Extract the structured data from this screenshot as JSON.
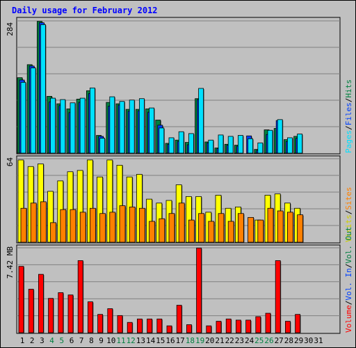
{
  "title": "Daily usage for February 2012",
  "colors": {
    "background": "#c0c0c0",
    "grid": "#808080",
    "hits": "#008040",
    "files": "#0040ff",
    "pages": "#00e0ff",
    "visits": "#ffff00",
    "sites": "#ff8000",
    "volume": "#ff0000",
    "kb_in": "#00c000",
    "kb_out": "#00a0a0",
    "weekend_label": "#008040"
  },
  "chart_data": [
    {
      "type": "bar",
      "name": "hits-files-pages",
      "max_label": "284",
      "ylim": [
        0,
        284
      ],
      "grid": true,
      "legend_labels": [
        "Pages",
        "Files",
        "Hits"
      ],
      "legend_separator": "/",
      "series": [
        {
          "name": "Hits",
          "values": [
            162,
            190,
            283,
            122,
            106,
            95,
            116,
            134,
            38,
            109,
            106,
            94,
            94,
            95,
            71,
            21,
            28,
            23,
            117,
            24,
            11,
            19,
            17,
            0,
            8,
            50,
            53,
            29,
            36
          ]
        },
        {
          "name": "Files",
          "values": [
            157,
            187,
            280,
            110,
            102,
            87,
            109,
            128,
            36,
            101,
            103,
            90,
            91,
            88,
            60,
            19,
            25,
            18,
            115,
            22,
            10,
            17,
            15,
            37,
            6,
            40,
            70,
            25,
            32
          ]
        },
        {
          "name": "Pages",
          "values": [
            152,
            183,
            276,
            118,
            115,
            108,
            118,
            140,
            32,
            121,
            111,
            114,
            117,
            97,
            54,
            33,
            46,
            42,
            139,
            28,
            39,
            36,
            38,
            31,
            22,
            49,
            72,
            33,
            41
          ]
        }
      ]
    },
    {
      "type": "bar",
      "name": "visits-sites",
      "max_label": "64",
      "ylim": [
        0,
        64
      ],
      "grid": true,
      "legend_labels": [
        "Visits",
        "Sites"
      ],
      "legend_separator": "/",
      "series": [
        {
          "name": "Visits",
          "values": [
            63,
            58,
            60,
            39,
            47,
            54,
            55,
            63,
            50,
            63,
            59,
            50,
            52,
            33,
            30,
            32,
            44,
            35,
            35,
            23,
            36,
            26,
            27,
            0,
            17,
            36,
            37,
            30,
            26
          ]
        },
        {
          "name": "Sites",
          "values": [
            26,
            30,
            31,
            15,
            25,
            25,
            23,
            26,
            22,
            23,
            28,
            27,
            26,
            16,
            18,
            22,
            30,
            17,
            22,
            16,
            22,
            16,
            22,
            19,
            17,
            26,
            24,
            23,
            21
          ]
        }
      ]
    },
    {
      "type": "bar",
      "name": "volume",
      "max_label": "7.42 MB",
      "ylim": [
        0,
        7.42
      ],
      "grid": true,
      "legend_labels": [
        "Volume",
        "Vol. In",
        "Vol. Out"
      ],
      "legend_separator": "/",
      "series": [
        {
          "name": "Volume",
          "values": [
            5.8,
            3.8,
            5.1,
            3.0,
            3.5,
            3.3,
            6.3,
            2.7,
            1.6,
            2.1,
            1.5,
            0.9,
            1.2,
            1.2,
            1.2,
            0.6,
            2.4,
            0.7,
            7.4,
            0.6,
            1.0,
            1.2,
            1.1,
            1.1,
            1.4,
            1.7,
            6.3,
            1.0,
            1.6
          ]
        }
      ]
    }
  ],
  "x_labels": [
    "1",
    "2",
    "3",
    "4",
    "5",
    "6",
    "7",
    "8",
    "9",
    "10",
    "11",
    "12",
    "13",
    "14",
    "15",
    "16",
    "17",
    "18",
    "19",
    "20",
    "21",
    "22",
    "23",
    "24",
    "25",
    "26",
    "27",
    "28",
    "29",
    "30",
    "31"
  ],
  "weekend_days": [
    4,
    5,
    11,
    12,
    18,
    19,
    25,
    26
  ],
  "legend_top_right": {
    "pages": "Pages",
    "files": "Files",
    "hits": "Hits"
  },
  "legend_mid_right": {
    "visits": "Visits",
    "sites": "Sites"
  },
  "legend_bottom_right": {
    "volume": "Volume",
    "vol_in": "Vol. In",
    "vol_out": "Vol. Out"
  },
  "separator": "/"
}
